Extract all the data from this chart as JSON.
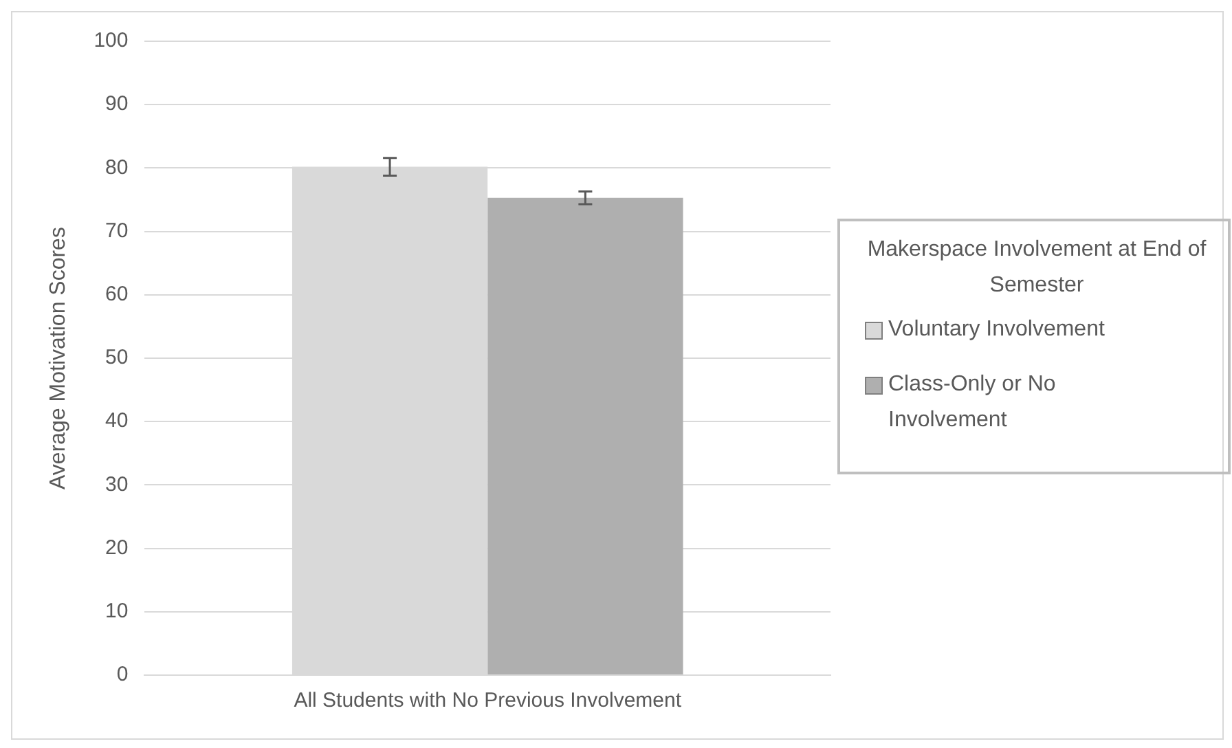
{
  "chart_data": {
    "type": "bar",
    "ylabel": "Average Motivation Scores",
    "legend_title": "Makerspace Involvement at End of Semester",
    "categories": [
      "All Students with No Previous Involvement"
    ],
    "series": [
      {
        "name": "Voluntary Involvement",
        "color": "#d9d9d9",
        "values": [
          80.2
        ],
        "errors": [
          1.4
        ]
      },
      {
        "name": "Class-Only or No Involvement",
        "color": "#afafaf",
        "values": [
          75.3
        ],
        "errors": [
          1.0
        ]
      }
    ],
    "ylim": [
      0,
      100
    ],
    "yticks": [
      0,
      10,
      20,
      30,
      40,
      50,
      60,
      70,
      80,
      90,
      100
    ],
    "grid": "y",
    "legend": "right"
  }
}
